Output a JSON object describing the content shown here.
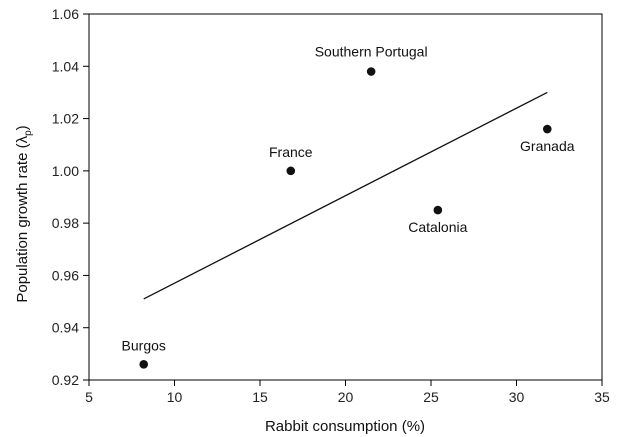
{
  "chart_data": {
    "type": "scatter",
    "xlabel": "Rabbit consumption (%)",
    "ylabel": "Population growth rate (",
    "ylabel_symbol": "λ",
    "ylabel_sub": "p",
    "ylabel_close": ")",
    "xlim": [
      5,
      35
    ],
    "ylim": [
      0.92,
      1.06
    ],
    "x_ticks": [
      "5",
      "10",
      "15",
      "20",
      "25",
      "30",
      "35"
    ],
    "y_ticks": [
      "0.92",
      "0.94",
      "0.96",
      "0.98",
      "1.00",
      "1.02",
      "1.04",
      "1.06"
    ],
    "grid": false,
    "points": [
      {
        "label": "Burgos",
        "x": 8.2,
        "y": 0.926
      },
      {
        "label": "France",
        "x": 16.8,
        "y": 1.0
      },
      {
        "label": "Southern Portugal",
        "x": 21.5,
        "y": 1.038
      },
      {
        "label": "Catalonia",
        "x": 25.4,
        "y": 0.985
      },
      {
        "label": "Granada",
        "x": 31.8,
        "y": 1.016
      }
    ],
    "regression_line": {
      "x": [
        8.2,
        31.8
      ],
      "y": [
        0.951,
        1.03
      ]
    },
    "colors": {
      "marker": "#111111",
      "line": "#111111",
      "axis": "#000000"
    }
  }
}
